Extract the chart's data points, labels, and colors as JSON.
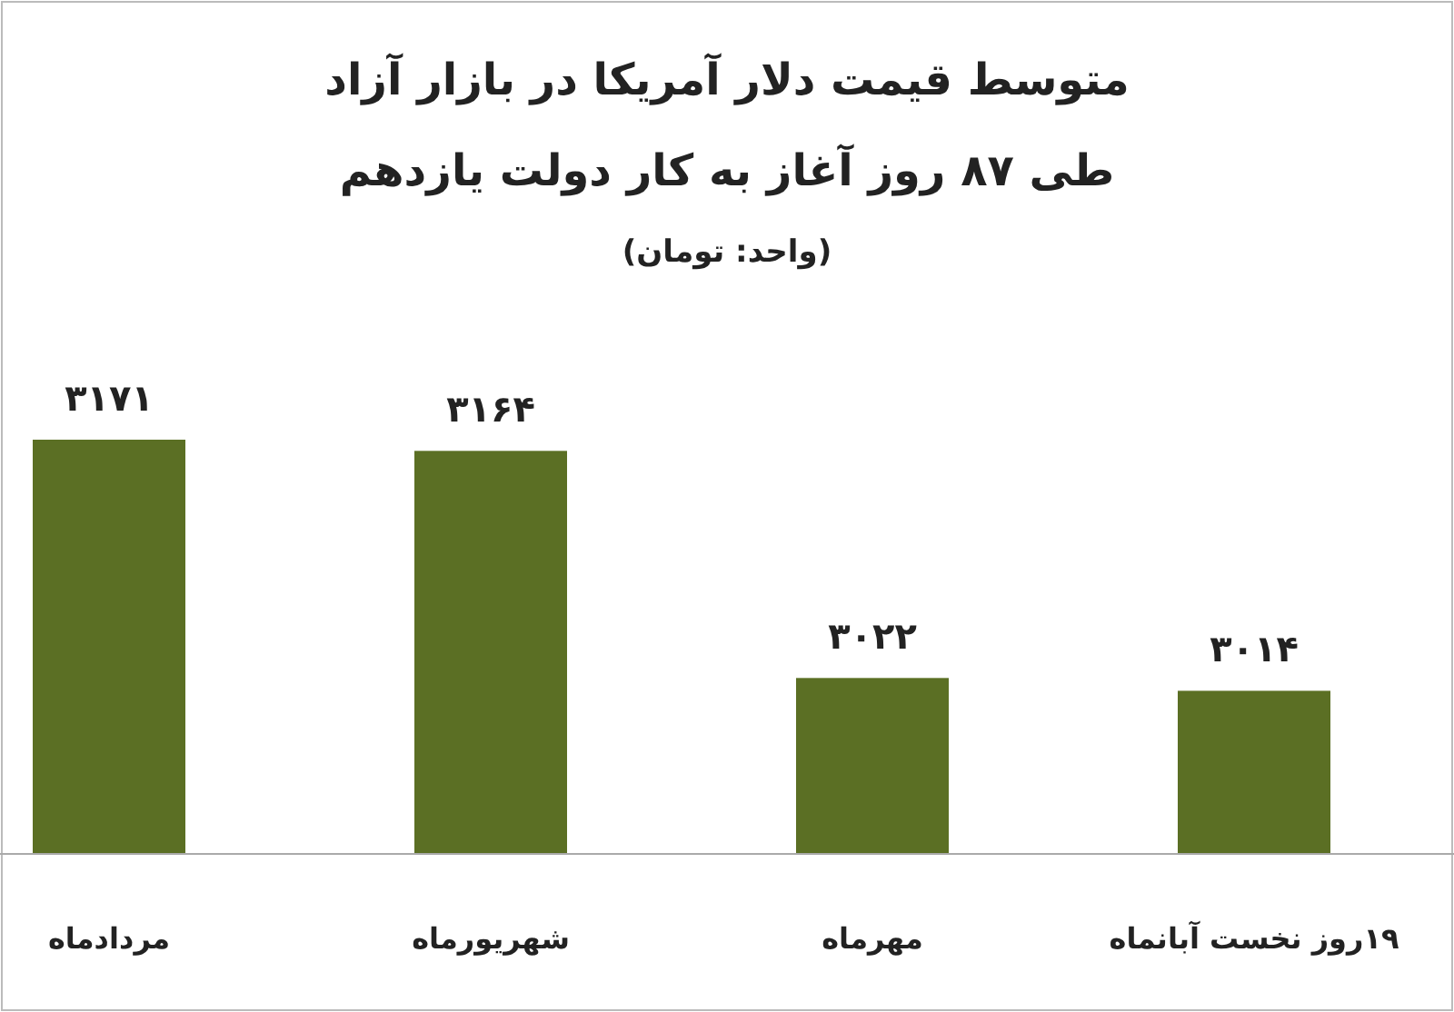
{
  "chart_data": {
    "type": "bar",
    "title": "متوسط قیمت دلار آمریکا در بازار آزاد\nطی ۸۷ روز آغاز به کار دولت یازدهم",
    "subtitle": "(واحد: تومان)",
    "categories": [
      "مردادماه",
      "شهریورماه",
      "مهرماه",
      "۱۹روز نخست آبانماه"
    ],
    "values": [
      3171,
      3164,
      3022,
      3014
    ],
    "value_labels": [
      "۳۱۷۱",
      "۳۱۶۴",
      "۳۰۲۲",
      "۳۰۱۴"
    ],
    "color": "#5b6f24",
    "ylim": [
      2912,
      3171
    ]
  }
}
